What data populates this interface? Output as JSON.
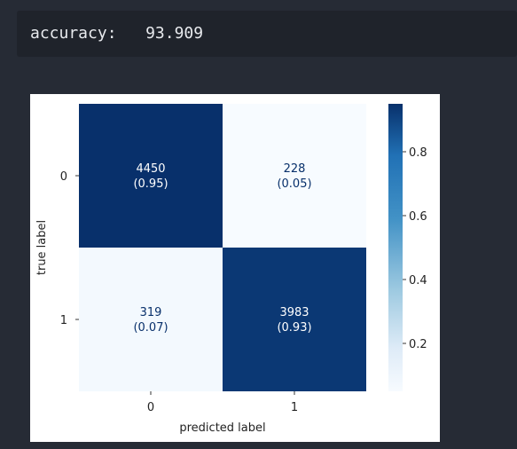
{
  "output": {
    "label": "accuracy:",
    "value": "93.909"
  },
  "chart_data": {
    "type": "heatmap",
    "colormap": "Blues",
    "xlabel": "predicted label",
    "ylabel": "true label",
    "x_ticks": [
      "0",
      "1"
    ],
    "y_ticks": [
      "0",
      "1"
    ],
    "matrix": [
      [
        4450,
        228
      ],
      [
        319,
        3983
      ]
    ],
    "normalized": [
      [
        0.95,
        0.05
      ],
      [
        0.07,
        0.93
      ]
    ],
    "cell_labels": [
      [
        {
          "count": "4450",
          "ratio": "(0.95)"
        },
        {
          "count": "228",
          "ratio": "(0.05)"
        }
      ],
      [
        {
          "count": "319",
          "ratio": "(0.07)"
        },
        {
          "count": "3983",
          "ratio": "(0.93)"
        }
      ]
    ],
    "colorbar": {
      "min": 0.05,
      "max": 0.95,
      "ticks": [
        "0.2",
        "0.4",
        "0.6",
        "0.8"
      ]
    }
  }
}
